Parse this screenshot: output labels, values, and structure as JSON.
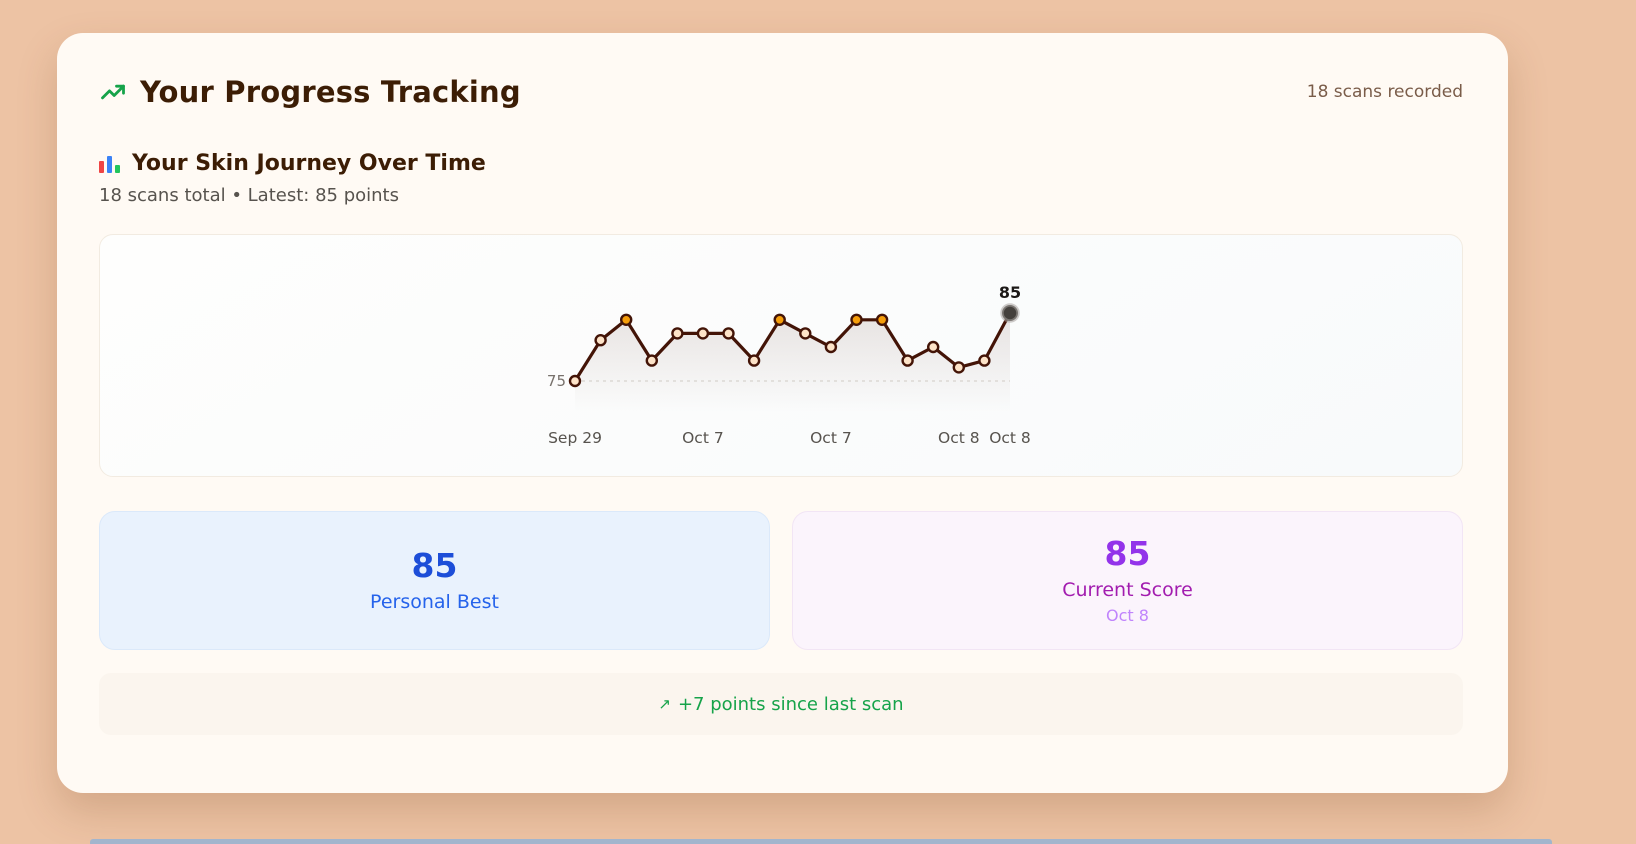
{
  "colors": {
    "page_background": "#edc3a4",
    "card_background": "#fffaf4",
    "title_text": "#3c1d05",
    "personal_best_accent": "#1d4ed8",
    "current_score_accent": "#9333ea",
    "delta_green": "#16a34a"
  },
  "header": {
    "title": "Your Progress Tracking",
    "icon": "trending-up-icon",
    "scans_recorded": "18 scans recorded"
  },
  "journey": {
    "icon": "bar-chart-icon",
    "title": "Your Skin Journey Over Time",
    "subtitle": "18 scans total • Latest: 85 points"
  },
  "chart_data": {
    "type": "line",
    "title": "Your Skin Journey Over Time",
    "xlabel": "",
    "ylabel": "",
    "values": [
      75,
      81,
      84,
      78,
      82,
      82,
      82,
      78,
      84,
      82,
      80,
      84,
      84,
      78,
      80,
      77,
      78,
      85
    ],
    "baseline_value": 75,
    "ylim": [
      74,
      87
    ],
    "ticks": [
      {
        "label": "Sep 29",
        "index": 0
      },
      {
        "label": "Oct 7",
        "index": 5
      },
      {
        "label": "Oct 7",
        "index": 10
      },
      {
        "label": "Oct 8",
        "index": 15
      },
      {
        "label": "Oct 8",
        "index": 17
      }
    ],
    "first_point_label": "75",
    "last_point_label": "85",
    "highlight_indices": [
      2,
      8,
      11,
      12
    ],
    "line_color": "#431407",
    "point_fill": "#fde3c8",
    "highlight_point_color": "#f59e0b",
    "last_point_color": "#44403c",
    "last_point_ring": "#a8a29e",
    "baseline_dash_color": "#d7d3cd",
    "grid": "baseline-dashed-only",
    "legend": "none"
  },
  "stats": {
    "personal_best": {
      "value": "85",
      "label": "Personal Best"
    },
    "current_score": {
      "value": "85",
      "label": "Current Score",
      "date": "Oct 8"
    }
  },
  "footer": {
    "icon_glyph": "↗",
    "text": "+7 points since last scan"
  }
}
